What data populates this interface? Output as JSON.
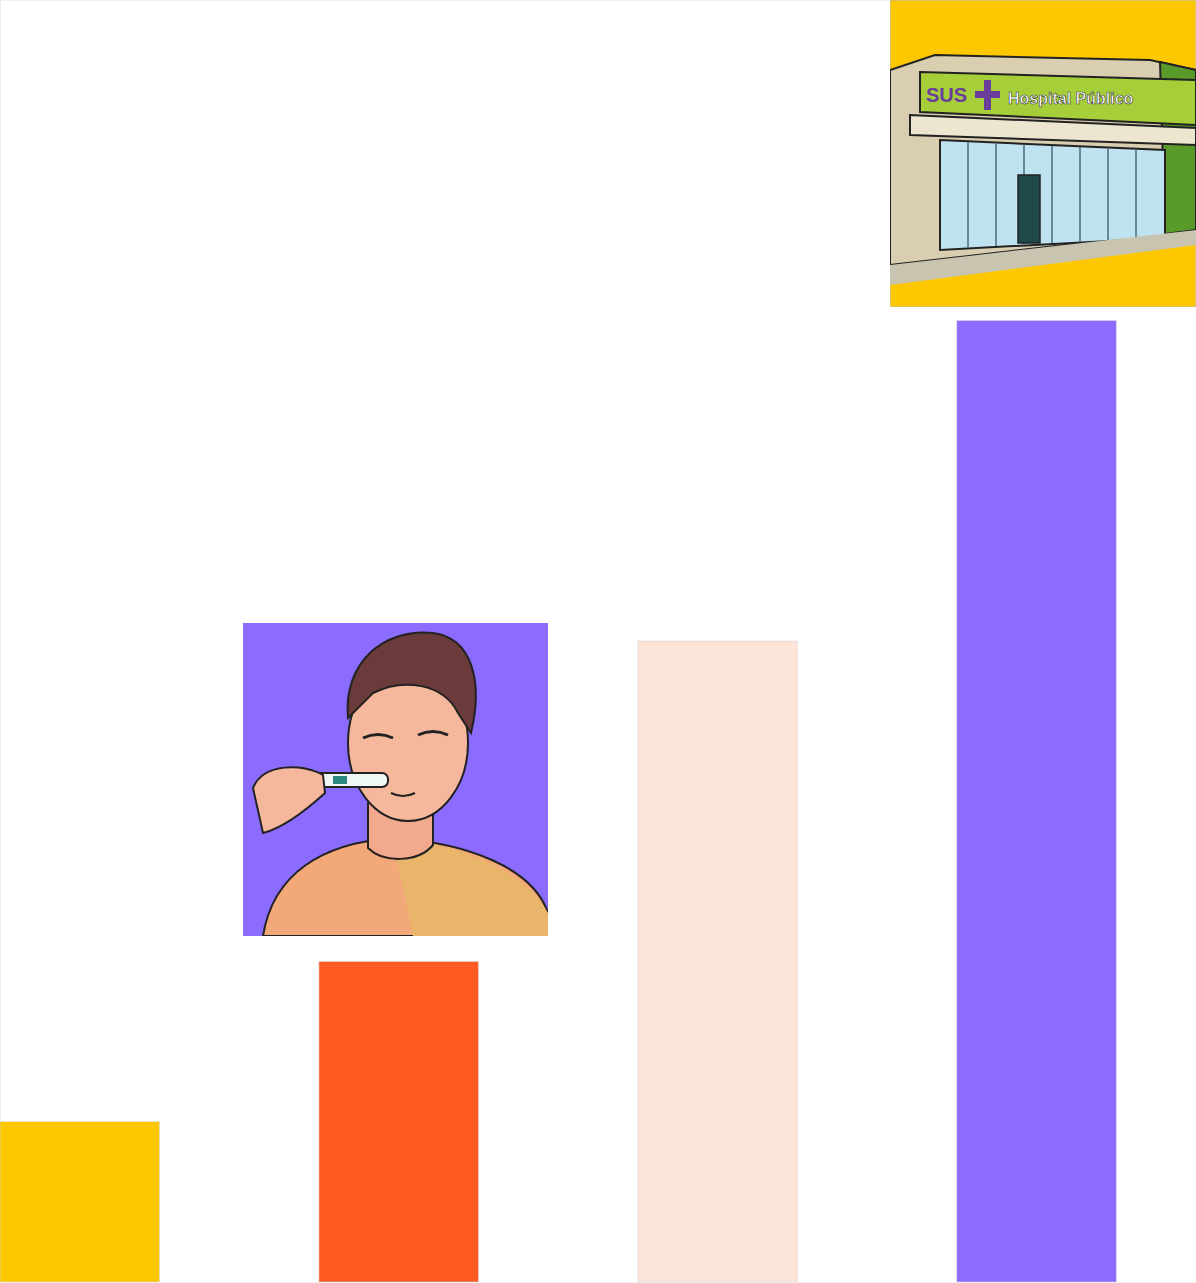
{
  "chart_data": {
    "type": "bar",
    "categories": [
      null,
      null,
      null,
      null
    ],
    "values": [
      1,
      2,
      4,
      6
    ],
    "colors": [
      "#fdc800",
      "#ff5a22",
      "#fde4d8",
      "#8b6cff"
    ],
    "ylim": [
      0,
      8
    ],
    "tick_labels": false,
    "annotations": [
      "SUS",
      "Hospital Público"
    ]
  }
}
